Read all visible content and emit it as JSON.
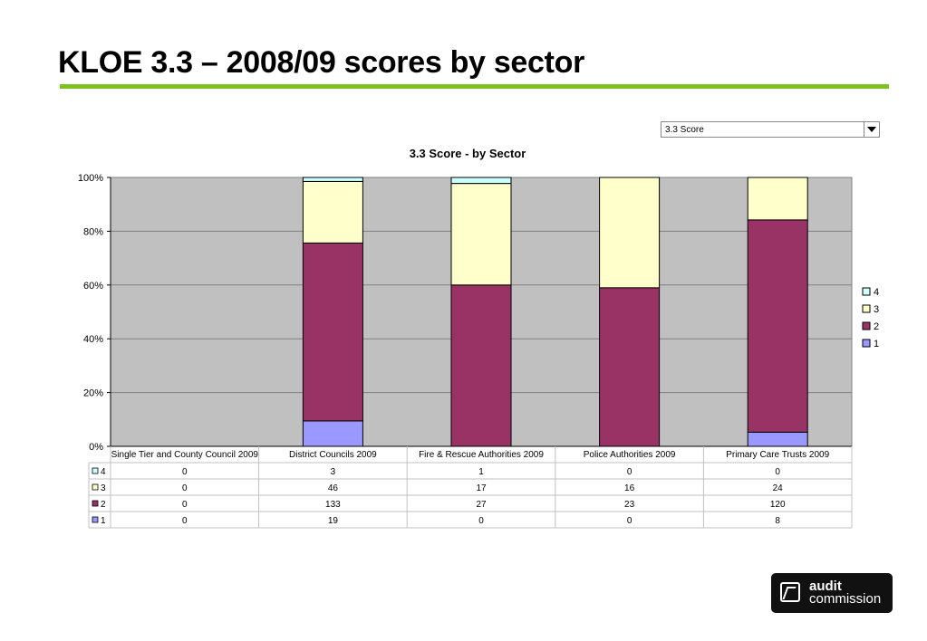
{
  "page": {
    "title": "KLOE 3.3 – 2008/09 scores by sector",
    "accent_color": "#7dc21e"
  },
  "filter": {
    "selected": "3.3 Score",
    "icon": "chevron-down-icon"
  },
  "logo": {
    "line1": "audit",
    "line2": "commission"
  },
  "chart_data": {
    "type": "bar",
    "stacked": "percent",
    "title": "3.3 Score - by Sector",
    "xlabel": "",
    "ylabel": "",
    "ylim": [
      0,
      100
    ],
    "y_ticks": [
      "0%",
      "20%",
      "40%",
      "60%",
      "80%",
      "100%"
    ],
    "grid": true,
    "plot_background": "#c0c0c0",
    "legend_position": "right",
    "categories": [
      "Single Tier and County Council 2009",
      "District Councils 2009",
      "Fire & Rescue Authorities 2009",
      "Police Authorities 2009",
      "Primary Care Trusts 2009"
    ],
    "series": [
      {
        "name": "4",
        "color": "#ccffff",
        "values": [
          0,
          3,
          1,
          0,
          0
        ]
      },
      {
        "name": "3",
        "color": "#ffffcc",
        "values": [
          0,
          46,
          17,
          16,
          24
        ]
      },
      {
        "name": "2",
        "color": "#993366",
        "values": [
          0,
          133,
          27,
          23,
          120
        ]
      },
      {
        "name": "1",
        "color": "#9999ff",
        "values": [
          0,
          19,
          0,
          0,
          8
        ]
      }
    ]
  }
}
